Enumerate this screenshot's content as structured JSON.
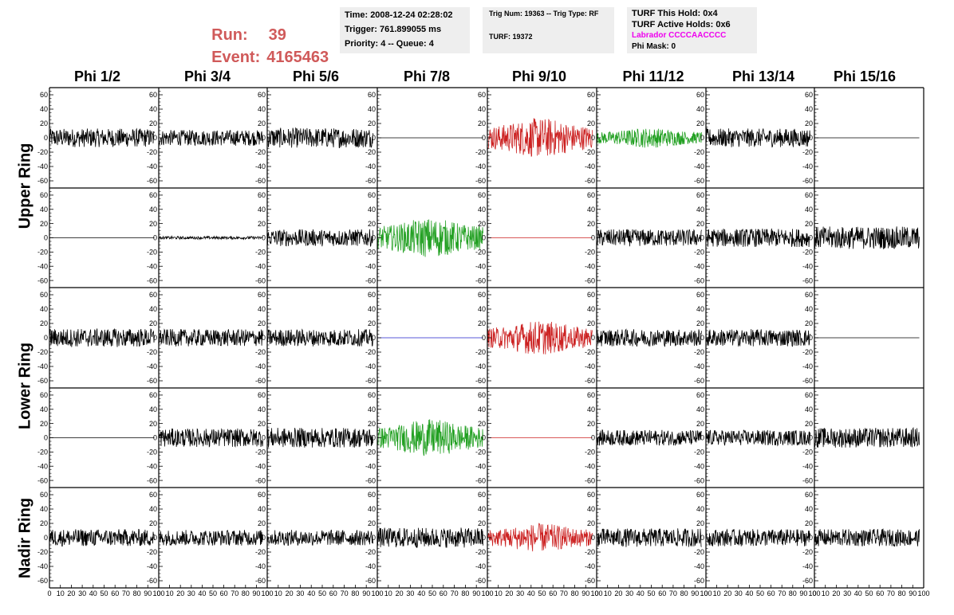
{
  "header": {
    "run_label": "Run:",
    "run_value": "39",
    "event_label": "Event:",
    "event_value": "4165463",
    "time": "Time: 2008-12-24 02:28:02",
    "trigger": "Trigger: 761.899055 ms",
    "priority": "Priority: 4 -- Queue: 4",
    "trig_num": "Trig Num: 19363 -- Trig Type: RF",
    "turf": "TURF: 19372",
    "turf_this_hold": "TURF This Hold: 0x4",
    "turf_active_holds": "TURF Active Holds: 0x6",
    "labrador": "Labrador CCCCAACCCC",
    "phi_mask": "Phi Mask: 0"
  },
  "columns": [
    "Phi 1/2",
    "Phi 3/4",
    "Phi 5/6",
    "Phi 7/8",
    "Phi 9/10",
    "Phi 11/12",
    "Phi 13/14",
    "Phi 15/16"
  ],
  "rings": [
    "Upper Ring",
    "Lower Ring",
    "Nadir Ring"
  ],
  "colors": {
    "run": "#d05a5a",
    "labrador": "#ee00ee",
    "trace_black": "#000000",
    "trace_red": "#cc2222",
    "trace_green": "#22a022",
    "trace_blue": "#2222cc"
  },
  "chart_data": {
    "type": "line",
    "rows": 5,
    "cols": 8,
    "xlim": [
      0,
      100
    ],
    "ylim": [
      -70,
      70
    ],
    "y_ticks": [
      -60,
      -40,
      -20,
      0,
      20,
      40,
      60
    ],
    "x_ticks": [
      0,
      10,
      20,
      30,
      40,
      50,
      60,
      70,
      80,
      90,
      100
    ],
    "trace_x_max": 96,
    "panels": [
      {
        "row": 0,
        "col": 0,
        "color": "trace_black",
        "amplitude": 13
      },
      {
        "row": 0,
        "col": 1,
        "color": "trace_black",
        "amplitude": 11
      },
      {
        "row": 0,
        "col": 2,
        "color": "trace_black",
        "amplitude": 14
      },
      {
        "row": 0,
        "col": 3,
        "color": "trace_black",
        "amplitude": 0
      },
      {
        "row": 0,
        "col": 4,
        "color": "trace_red",
        "amplitude": 28
      },
      {
        "row": 0,
        "col": 5,
        "color": "trace_green",
        "amplitude": 14
      },
      {
        "row": 0,
        "col": 6,
        "color": "trace_black",
        "amplitude": 13
      },
      {
        "row": 0,
        "col": 7,
        "color": "trace_black",
        "amplitude": 0
      },
      {
        "row": 1,
        "col": 0,
        "color": "trace_black",
        "amplitude": 0
      },
      {
        "row": 1,
        "col": 1,
        "color": "trace_black",
        "amplitude": 2
      },
      {
        "row": 1,
        "col": 2,
        "color": "trace_black",
        "amplitude": 12
      },
      {
        "row": 1,
        "col": 3,
        "color": "trace_green",
        "amplitude": 28
      },
      {
        "row": 1,
        "col": 4,
        "color": "trace_red",
        "amplitude": 0
      },
      {
        "row": 1,
        "col": 5,
        "color": "trace_black",
        "amplitude": 12
      },
      {
        "row": 1,
        "col": 6,
        "color": "trace_black",
        "amplitude": 13
      },
      {
        "row": 1,
        "col": 7,
        "color": "trace_black",
        "amplitude": 16
      },
      {
        "row": 2,
        "col": 0,
        "color": "trace_black",
        "amplitude": 13
      },
      {
        "row": 2,
        "col": 1,
        "color": "trace_black",
        "amplitude": 12
      },
      {
        "row": 2,
        "col": 2,
        "color": "trace_black",
        "amplitude": 12
      },
      {
        "row": 2,
        "col": 3,
        "color": "trace_blue",
        "amplitude": 0
      },
      {
        "row": 2,
        "col": 4,
        "color": "trace_red",
        "amplitude": 24
      },
      {
        "row": 2,
        "col": 5,
        "color": "trace_black",
        "amplitude": 12
      },
      {
        "row": 2,
        "col": 6,
        "color": "trace_black",
        "amplitude": 12
      },
      {
        "row": 2,
        "col": 7,
        "color": "trace_black",
        "amplitude": 0
      },
      {
        "row": 3,
        "col": 0,
        "color": "trace_black",
        "amplitude": 0
      },
      {
        "row": 3,
        "col": 1,
        "color": "trace_black",
        "amplitude": 13
      },
      {
        "row": 3,
        "col": 2,
        "color": "trace_black",
        "amplitude": 14
      },
      {
        "row": 3,
        "col": 3,
        "color": "trace_green",
        "amplitude": 26
      },
      {
        "row": 3,
        "col": 4,
        "color": "trace_red",
        "amplitude": 0
      },
      {
        "row": 3,
        "col": 5,
        "color": "trace_black",
        "amplitude": 11
      },
      {
        "row": 3,
        "col": 6,
        "color": "trace_black",
        "amplitude": 11
      },
      {
        "row": 3,
        "col": 7,
        "color": "trace_black",
        "amplitude": 14
      },
      {
        "row": 4,
        "col": 0,
        "color": "trace_black",
        "amplitude": 12
      },
      {
        "row": 4,
        "col": 1,
        "color": "trace_black",
        "amplitude": 11
      },
      {
        "row": 4,
        "col": 2,
        "color": "trace_black",
        "amplitude": 11
      },
      {
        "row": 4,
        "col": 3,
        "color": "trace_black",
        "amplitude": 14
      },
      {
        "row": 4,
        "col": 4,
        "color": "trace_red",
        "amplitude": 20
      },
      {
        "row": 4,
        "col": 5,
        "color": "trace_black",
        "amplitude": 13
      },
      {
        "row": 4,
        "col": 6,
        "color": "trace_black",
        "amplitude": 12
      },
      {
        "row": 4,
        "col": 7,
        "color": "trace_black",
        "amplitude": 12
      }
    ]
  }
}
